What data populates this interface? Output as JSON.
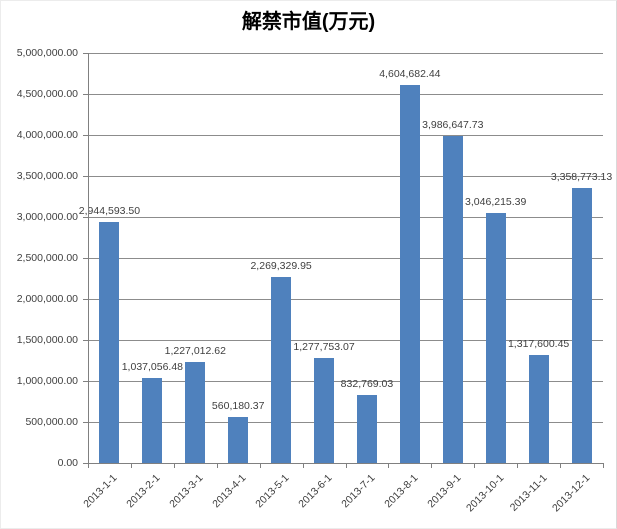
{
  "chart_data": {
    "type": "bar",
    "title": "解禁市值(万元)",
    "categories": [
      "2013-1-1",
      "2013-2-1",
      "2013-3-1",
      "2013-4-1",
      "2013-5-1",
      "2013-6-1",
      "2013-7-1",
      "2013-8-1",
      "2013-9-1",
      "2013-10-1",
      "2013-11-1",
      "2013-12-1"
    ],
    "values": [
      2944593.5,
      1037056.48,
      1227012.62,
      560180.37,
      2269329.95,
      1277753.07,
      832769.03,
      4604682.44,
      3986647.73,
      3046215.39,
      1317600.45,
      3358773.13
    ],
    "value_labels": [
      "2,944,593.50",
      "1,037,056.48",
      "1,227,012.62",
      "560,180.37",
      "2,269,329.95",
      "1,277,753.07",
      "832,769.03",
      "4,604,682.44",
      "3,986,647.73",
      "3,046,215.39",
      "1,317,600.45",
      "3,358,773.13"
    ],
    "xlabel": "",
    "ylabel": "",
    "ylim": [
      0,
      5000000
    ],
    "ytick_step": 500000,
    "ytick_labels": [
      "0.00",
      "500,000.00",
      "1,000,000.00",
      "1,500,000.00",
      "2,000,000.00",
      "2,500,000.00",
      "3,000,000.00",
      "3,500,000.00",
      "4,000,000.00",
      "4,500,000.00",
      "5,000,000.00"
    ],
    "x_tick_rotation_deg": 45,
    "grid": "horizontal",
    "legend": "none"
  },
  "colors": {
    "bar": "#4F81BD",
    "gridline": "#8C8C8C",
    "axis": "#808080",
    "label_text": "#3F3F3F",
    "title_text": "#000000",
    "border": "#D9D9D9",
    "background": "#FFFFFF"
  }
}
